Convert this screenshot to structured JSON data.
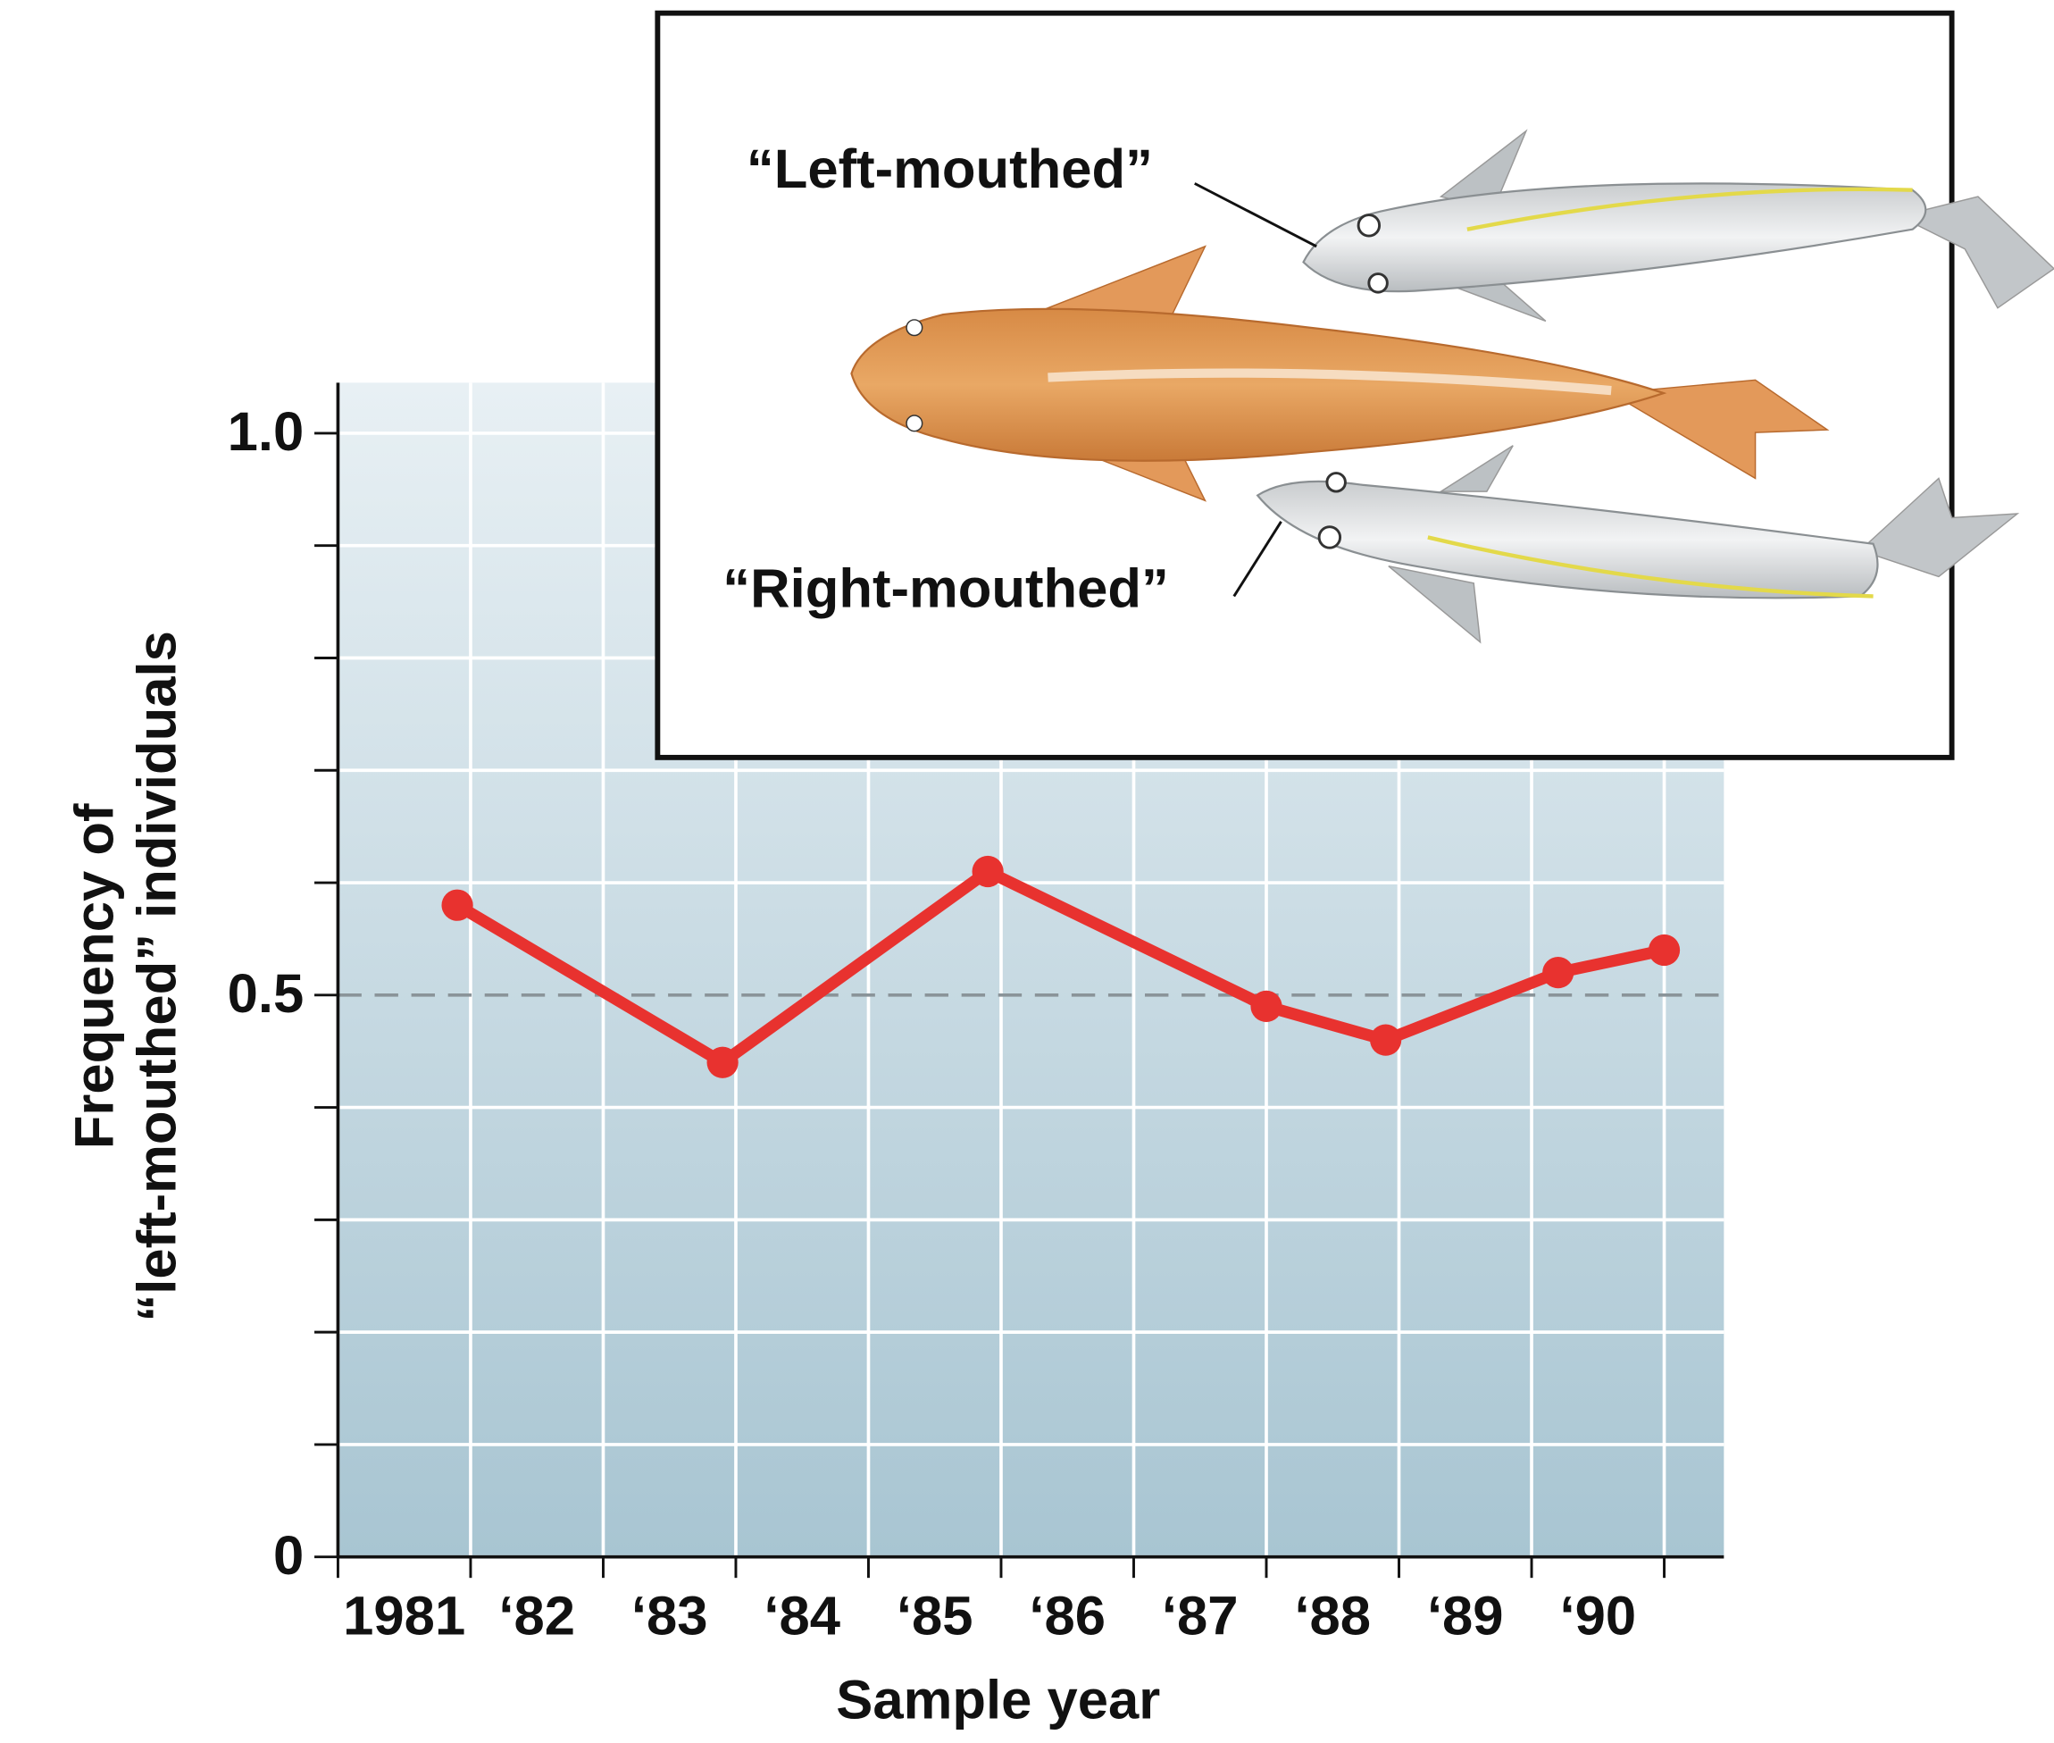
{
  "chart_data": {
    "type": "line",
    "x_label": "Sample year",
    "y_label": [
      "Frequency of",
      "“left-mouthed” individuals"
    ],
    "categories": [
      "1981",
      "‘82",
      "‘83",
      "‘84",
      "‘85",
      "‘86",
      "‘87",
      "‘88",
      "‘89",
      "‘90"
    ],
    "xlim": [
      1980,
      1990.45
    ],
    "xticks": [
      1980,
      1981,
      1982,
      1983,
      1984,
      1985,
      1986,
      1987,
      1988,
      1989,
      1990
    ],
    "ylim": [
      0,
      1.045
    ],
    "yticks": [
      0,
      0.5,
      {
        "value": 1,
        "label": "1.0"
      }
    ],
    "yminorticks": [
      0.1,
      0.2,
      0.3,
      0.4,
      0.6,
      0.7,
      0.8,
      0.9
    ],
    "grid": true,
    "reference_line": 0.5,
    "series": [
      {
        "color": "#e8322f",
        "x": [
          1980.9,
          1982.9,
          1984.9,
          1987.0,
          1987.9,
          1989.2,
          1990.0
        ],
        "values": [
          0.58,
          0.44,
          0.61,
          0.49,
          0.46,
          0.52,
          0.54
        ]
      }
    ]
  },
  "inset": {
    "labels": [
      "“Left-mouthed”",
      "“Right-mouthed”"
    ]
  }
}
